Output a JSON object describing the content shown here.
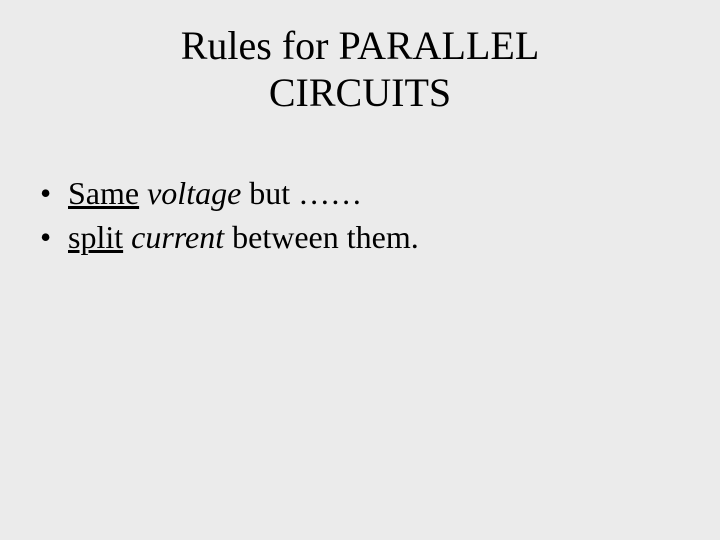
{
  "background_color": "#ebebeb",
  "text_color": "#000000",
  "font_family": "Times New Roman",
  "title": {
    "line1": "Rules for PARALLEL",
    "line2": "CIRCUITS",
    "fontsize": 40,
    "align": "center"
  },
  "bullets": {
    "fontsize": 32,
    "items": [
      {
        "segments": {
          "a_underline": "Same",
          "b_plain": " ",
          "c_italic": "voltage",
          "d_plain": " but ……"
        }
      },
      {
        "segments": {
          "a_underline": "split",
          "b_plain": " ",
          "c_italic": "current",
          "d_plain": " between them."
        }
      }
    ]
  }
}
